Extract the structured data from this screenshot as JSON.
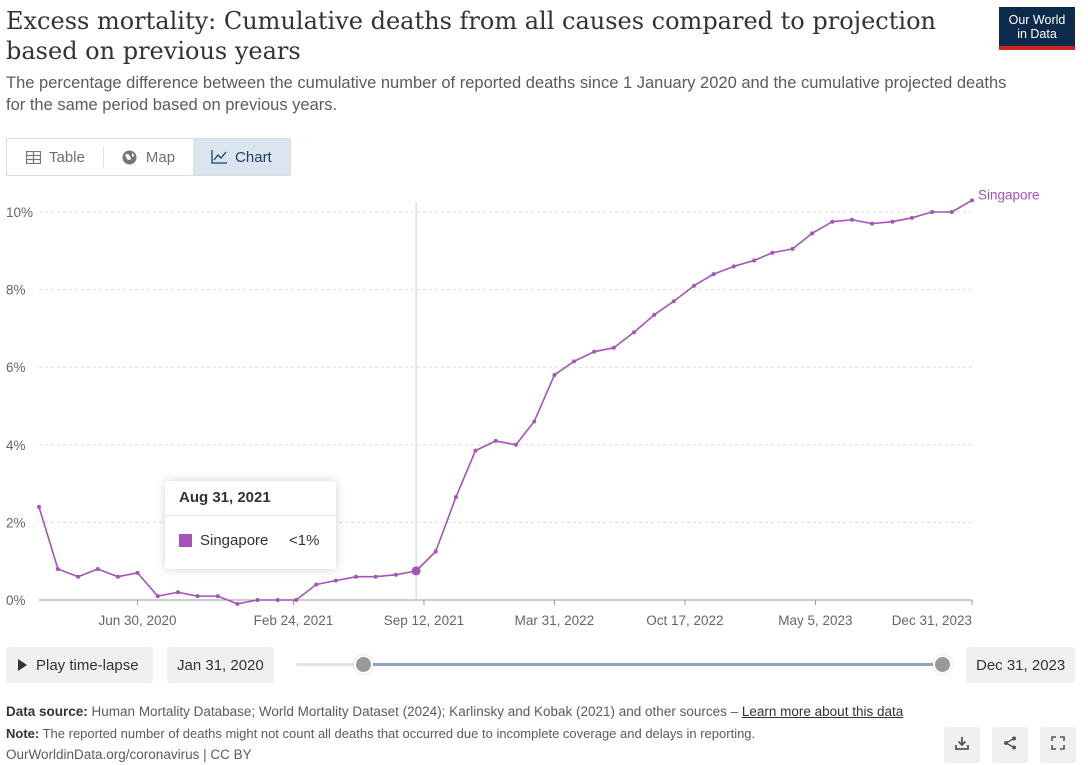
{
  "header": {
    "title": "Excess mortality: Cumulative deaths from all causes compared to projection based on previous years",
    "subtitle": "The percentage difference between the cumulative number of reported deaths since 1 January 2020 and the cumulative projected deaths for the same period based on previous years.",
    "logo_line1": "Our World",
    "logo_line2": "in Data"
  },
  "tabs": [
    {
      "label": "Table",
      "icon": "table-icon",
      "active": false
    },
    {
      "label": "Map",
      "icon": "globe-icon",
      "active": false
    },
    {
      "label": "Chart",
      "icon": "line-chart-icon",
      "active": true
    }
  ],
  "tooltip": {
    "date": "Aug 31, 2021",
    "series": "Singapore",
    "value": "<1%",
    "color": "#a652ba"
  },
  "timeline": {
    "play_label": "Play time-lapse",
    "start_date": "Jan 31, 2020",
    "end_date": "Dec 31, 2023",
    "range_fraction": [
      0.1,
      1.0
    ]
  },
  "footer": {
    "source_label": "Data source:",
    "source_text": "Human Mortality Database; World Mortality Dataset (2024); Karlinsky and Kobak (2021) and other sources –",
    "source_link": "Learn more about this data",
    "note_label": "Note:",
    "note_text": "The reported number of deaths might not count all deaths that occurred due to incomplete coverage and delays in reporting.",
    "url_text": "OurWorldinData.org/coronavirus | CC BY"
  },
  "actions": {
    "download_icon": "download-icon",
    "share_icon": "share-icon",
    "fullscreen_icon": "fullscreen-icon"
  },
  "chart_data": {
    "type": "line",
    "title": "",
    "xlabel": "",
    "ylabel": "",
    "ylim": [
      0,
      10
    ],
    "y_ticks": [
      0,
      2,
      4,
      6,
      8,
      10
    ],
    "y_tick_labels": [
      "0%",
      "2%",
      "4%",
      "6%",
      "8%",
      "10%"
    ],
    "x_tick_labels": [
      "Jun 30, 2020",
      "Feb 24, 2021",
      "Sep 12, 2021",
      "Mar 31, 2022",
      "Oct 17, 2022",
      "May 5, 2023",
      "Dec 31, 2023"
    ],
    "x_tick_dates": [
      "2020-06-30",
      "2021-02-24",
      "2021-09-12",
      "2022-03-31",
      "2022-10-17",
      "2023-05-05",
      "2023-12-31"
    ],
    "x_range": [
      "2020-01-31",
      "2023-12-31"
    ],
    "grid": true,
    "hover_date": "2021-08-31",
    "series": [
      {
        "name": "Singapore",
        "color": "#a652ba",
        "x": [
          "2020-01-31",
          "2020-02-29",
          "2020-03-31",
          "2020-04-30",
          "2020-05-31",
          "2020-06-30",
          "2020-07-31",
          "2020-08-31",
          "2020-09-30",
          "2020-10-31",
          "2020-11-30",
          "2020-12-31",
          "2021-01-31",
          "2021-02-28",
          "2021-03-31",
          "2021-04-30",
          "2021-05-31",
          "2021-06-30",
          "2021-07-31",
          "2021-08-31",
          "2021-09-30",
          "2021-10-31",
          "2021-11-30",
          "2021-12-31",
          "2022-01-31",
          "2022-02-28",
          "2022-03-31",
          "2022-04-30",
          "2022-05-31",
          "2022-06-30",
          "2022-07-31",
          "2022-08-31",
          "2022-09-30",
          "2022-10-31",
          "2022-11-30",
          "2022-12-31",
          "2023-01-31",
          "2023-02-28",
          "2023-03-31",
          "2023-04-30",
          "2023-05-31",
          "2023-06-30",
          "2023-07-31",
          "2023-08-31",
          "2023-09-30",
          "2023-10-31",
          "2023-11-30",
          "2023-12-31"
        ],
        "y": [
          2.4,
          0.8,
          0.6,
          0.8,
          0.6,
          0.7,
          0.1,
          0.2,
          0.1,
          0.1,
          -0.1,
          0.0,
          0.0,
          0.0,
          0.4,
          0.5,
          0.6,
          0.6,
          0.65,
          0.75,
          1.25,
          2.65,
          3.85,
          4.1,
          4.0,
          4.6,
          5.8,
          6.15,
          6.4,
          6.5,
          6.9,
          7.35,
          7.7,
          8.1,
          8.4,
          8.6,
          8.75,
          8.95,
          9.05,
          9.45,
          9.75,
          9.8,
          9.7,
          9.75,
          9.85,
          10.0,
          10.0,
          10.3
        ]
      }
    ]
  }
}
